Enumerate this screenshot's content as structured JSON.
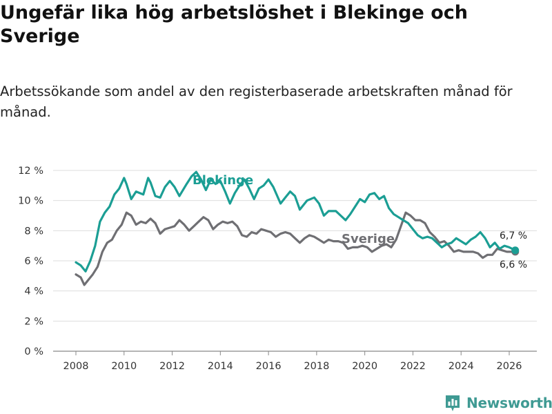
{
  "header": {
    "title": "Ungefär lika hög arbetslöshet i Blekinge och Sverige",
    "subtitle": "Arbetssökande som andel av den registerbaserade arbetskraften månad för månad."
  },
  "brand": {
    "name": "Newsworthy"
  },
  "colors": {
    "blekinge": "#1b9e94",
    "sverige": "#6f6f73",
    "grid": "#dddddd",
    "axis": "#888888"
  },
  "chart_data": {
    "type": "line",
    "title": "Ungefär lika hög arbetslöshet i Blekinge och Sverige",
    "xlabel": "",
    "ylabel": "",
    "xlim": [
      2007.5,
      2026.7
    ],
    "ylim": [
      0,
      12
    ],
    "grid": true,
    "y_ticks": [
      0,
      2,
      4,
      6,
      8,
      10,
      12
    ],
    "y_tick_labels": [
      "0 %",
      "2 %",
      "4 %",
      "6 %",
      "8 %",
      "10 %",
      "12 %"
    ],
    "x_ticks": [
      2008,
      2010,
      2012,
      2014,
      2016,
      2018,
      2020,
      2022,
      2024,
      2026
    ],
    "x_tick_labels": [
      "2008",
      "2010",
      "2012",
      "2014",
      "2016",
      "2018",
      "2020",
      "2022",
      "2024",
      "2026"
    ],
    "series": [
      {
        "name": "Blekinge",
        "color": "#1b9e94",
        "x": [
          2008.0,
          2008.2,
          2008.4,
          2008.6,
          2008.8,
          2009.0,
          2009.2,
          2009.4,
          2009.6,
          2009.8,
          2010.0,
          2010.1,
          2010.3,
          2010.5,
          2010.8,
          2011.0,
          2011.1,
          2011.3,
          2011.5,
          2011.7,
          2011.9,
          2012.1,
          2012.3,
          2012.6,
          2012.8,
          2013.0,
          2013.2,
          2013.4,
          2013.6,
          2013.8,
          2014.0,
          2014.2,
          2014.4,
          2014.6,
          2014.8,
          2015.0,
          2015.2,
          2015.4,
          2015.6,
          2015.8,
          2016.0,
          2016.2,
          2016.5,
          2016.7,
          2016.9,
          2017.1,
          2017.3,
          2017.6,
          2017.9,
          2018.1,
          2018.3,
          2018.5,
          2018.8,
          2019.0,
          2019.2,
          2019.4,
          2019.6,
          2019.8,
          2020.0,
          2020.2,
          2020.4,
          2020.6,
          2020.8,
          2021.0,
          2021.2,
          2021.4,
          2021.6,
          2021.8,
          2022.0,
          2022.2,
          2022.4,
          2022.6,
          2022.8,
          2023.0,
          2023.2,
          2023.4,
          2023.6,
          2023.8,
          2024.0,
          2024.2,
          2024.4,
          2024.6,
          2024.8,
          2025.0,
          2025.2,
          2025.4,
          2025.6,
          2025.8,
          2026.0,
          2026.25
        ],
        "values": [
          5.9,
          5.7,
          5.3,
          6.0,
          7.0,
          8.6,
          9.2,
          9.6,
          10.4,
          10.8,
          11.5,
          11.1,
          10.1,
          10.6,
          10.4,
          11.5,
          11.2,
          10.3,
          10.2,
          10.9,
          11.3,
          10.9,
          10.3,
          11.1,
          11.6,
          11.9,
          11.4,
          10.7,
          11.4,
          11.1,
          11.3,
          10.6,
          9.8,
          10.5,
          11.0,
          11.4,
          10.8,
          10.1,
          10.8,
          11.0,
          11.4,
          10.9,
          9.8,
          10.2,
          10.6,
          10.3,
          9.4,
          10.0,
          10.2,
          9.8,
          9.0,
          9.3,
          9.3,
          9.0,
          8.7,
          9.1,
          9.6,
          10.1,
          9.9,
          10.4,
          10.5,
          10.1,
          10.3,
          9.5,
          9.1,
          8.9,
          8.7,
          8.5,
          8.1,
          7.7,
          7.5,
          7.6,
          7.5,
          7.2,
          6.9,
          7.1,
          7.2,
          7.5,
          7.3,
          7.1,
          7.4,
          7.6,
          7.9,
          7.5,
          6.9,
          7.2,
          6.8,
          7.0,
          6.9,
          6.7
        ]
      },
      {
        "name": "Sverige",
        "color": "#6f6f73",
        "x": [
          2008.0,
          2008.2,
          2008.35,
          2008.5,
          2008.7,
          2008.9,
          2009.1,
          2009.3,
          2009.5,
          2009.7,
          2009.9,
          2010.1,
          2010.3,
          2010.5,
          2010.7,
          2010.9,
          2011.1,
          2011.3,
          2011.5,
          2011.7,
          2011.9,
          2012.1,
          2012.3,
          2012.5,
          2012.7,
          2012.9,
          2013.1,
          2013.3,
          2013.5,
          2013.7,
          2013.9,
          2014.1,
          2014.3,
          2014.5,
          2014.7,
          2014.9,
          2015.1,
          2015.3,
          2015.5,
          2015.7,
          2015.9,
          2016.1,
          2016.3,
          2016.5,
          2016.7,
          2016.9,
          2017.1,
          2017.3,
          2017.5,
          2017.7,
          2017.9,
          2018.1,
          2018.3,
          2018.5,
          2018.7,
          2018.9,
          2019.1,
          2019.3,
          2019.5,
          2019.7,
          2019.9,
          2020.1,
          2020.3,
          2020.5,
          2020.7,
          2020.9,
          2021.1,
          2021.3,
          2021.5,
          2021.7,
          2021.9,
          2022.1,
          2022.3,
          2022.5,
          2022.7,
          2022.9,
          2023.1,
          2023.3,
          2023.5,
          2023.7,
          2023.9,
          2024.1,
          2024.3,
          2024.5,
          2024.7,
          2024.9,
          2025.1,
          2025.3,
          2025.5,
          2025.7,
          2025.9,
          2026.25
        ],
        "values": [
          5.1,
          4.9,
          4.4,
          4.7,
          5.1,
          5.6,
          6.6,
          7.2,
          7.4,
          8.0,
          8.4,
          9.2,
          9.0,
          8.4,
          8.6,
          8.5,
          8.8,
          8.5,
          7.8,
          8.1,
          8.2,
          8.3,
          8.7,
          8.4,
          8.0,
          8.3,
          8.6,
          8.9,
          8.7,
          8.1,
          8.4,
          8.6,
          8.5,
          8.6,
          8.3,
          7.7,
          7.6,
          7.9,
          7.8,
          8.1,
          8.0,
          7.9,
          7.6,
          7.8,
          7.9,
          7.8,
          7.5,
          7.2,
          7.5,
          7.7,
          7.6,
          7.4,
          7.2,
          7.4,
          7.3,
          7.3,
          7.2,
          6.8,
          6.9,
          6.9,
          7.0,
          6.9,
          6.6,
          6.8,
          7.0,
          7.1,
          6.9,
          7.4,
          8.3,
          9.2,
          9.0,
          8.7,
          8.7,
          8.5,
          7.9,
          7.6,
          7.2,
          7.3,
          7.0,
          6.6,
          6.7,
          6.6,
          6.6,
          6.6,
          6.5,
          6.2,
          6.4,
          6.4,
          6.8,
          6.7,
          6.6,
          6.6
        ]
      }
    ],
    "series_labels": [
      "Blekinge",
      "Sverige"
    ],
    "end_labels": [
      "6,7 %",
      "6,6 %"
    ]
  }
}
